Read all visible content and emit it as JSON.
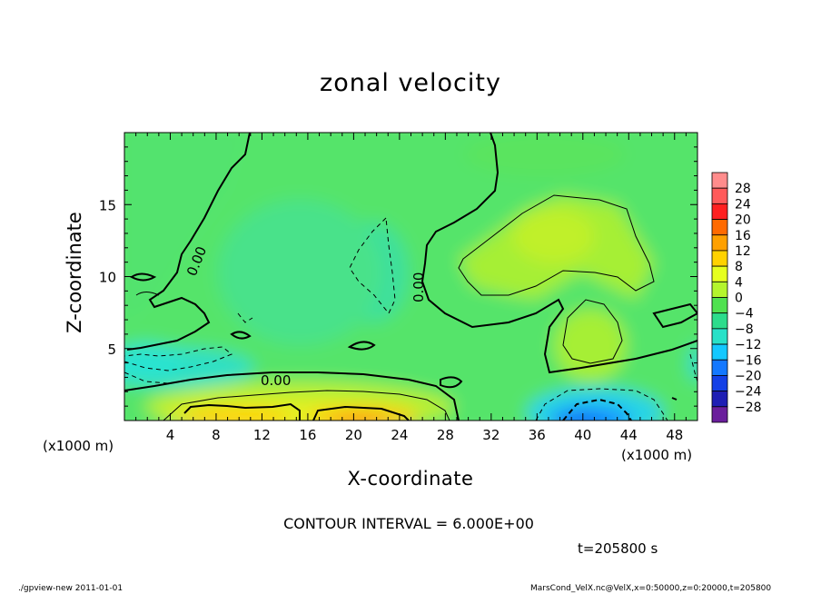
{
  "chart_data": {
    "type": "heatmap",
    "title": "zonal velocity",
    "xlabel": "X-coordinate",
    "ylabel": "Z-coordinate",
    "x_unit": "(x1000 m)",
    "y_unit": "(x1000 m)",
    "x_ticks": [
      4,
      8,
      12,
      16,
      20,
      24,
      28,
      32,
      36,
      40,
      44,
      48
    ],
    "y_ticks": [
      5,
      10,
      15
    ],
    "xlim": [
      0,
      50
    ],
    "ylim": [
      0,
      20
    ],
    "colorbar_ticks": [
      28,
      24,
      20,
      16,
      12,
      8,
      4,
      0,
      -4,
      -8,
      -12,
      -16,
      -20,
      -24,
      -28
    ],
    "colorbar_colors": [
      "#ff8c8c",
      "#ff5a5a",
      "#ff2020",
      "#ff6a00",
      "#ffa000",
      "#ffd200",
      "#e6ff1e",
      "#b4f52d",
      "#50e150",
      "#2ddc8c",
      "#28e1c8",
      "#14c8ff",
      "#1478ff",
      "#1440e6",
      "#1e1eb4",
      "#6a1e9c"
    ],
    "contour_labels": [
      "0.00",
      "0.00",
      "0.00"
    ],
    "contour_interval": "CONTOUR INTERVAL = 6.000E+00",
    "time": "t=205800 s"
  },
  "footer": {
    "left": "./gpview-new   2011-01-01",
    "right": "MarsCond_VelX.nc@VelX,x=0:50000,z=0:20000,t=205800"
  }
}
